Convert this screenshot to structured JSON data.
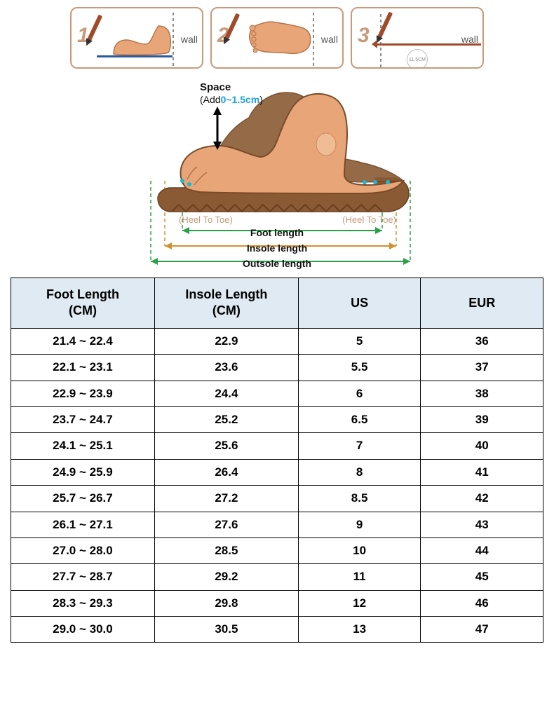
{
  "steps": {
    "s1": {
      "num": "1",
      "wall": "wall"
    },
    "s2": {
      "num": "2",
      "wall": "wall"
    },
    "s3": {
      "num": "3",
      "wall": "wall",
      "circle": "11.5CM"
    }
  },
  "diagram": {
    "space_label": "Space",
    "space_add_prefix": "(Add",
    "space_val": "0~1.5cm",
    "space_add_suffix": ")",
    "heel_to_toe": "(Heel To Toe)",
    "foot_length": "Foot length",
    "insole_length": "Insole length",
    "outsole_length": "Outsole length",
    "colors": {
      "skin_main": "#e8a678",
      "skin_dark": "#b4744a",
      "outline": "#7a4a2a",
      "shoe": "#8a5a34",
      "foot_green": "#2aa048",
      "insole_orange": "#d69030",
      "outsole_green": "#2aa048",
      "accent_blue": "#1aa3d6",
      "teal_dot": "#1abacb"
    }
  },
  "table": {
    "header_bg": "#dfeaf2",
    "border_color": "#000000",
    "columns": [
      "Foot Length (CM)",
      "Insole Length (CM)",
      "US",
      "EUR"
    ],
    "rows": [
      [
        "21.4 ~ 22.4",
        "22.9",
        "5",
        "36"
      ],
      [
        "22.1 ~ 23.1",
        "23.6",
        "5.5",
        "37"
      ],
      [
        "22.9 ~ 23.9",
        "24.4",
        "6",
        "38"
      ],
      [
        "23.7 ~ 24.7",
        "25.2",
        "6.5",
        "39"
      ],
      [
        "24.1 ~ 25.1",
        "25.6",
        "7",
        "40"
      ],
      [
        "24.9 ~ 25.9",
        "26.4",
        "8",
        "41"
      ],
      [
        "25.7 ~ 26.7",
        "27.2",
        "8.5",
        "42"
      ],
      [
        "26.1 ~ 27.1",
        "27.6",
        "9",
        "43"
      ],
      [
        "27.0 ~ 28.0",
        "28.5",
        "10",
        "44"
      ],
      [
        "27.7 ~ 28.7",
        "29.2",
        "11",
        "45"
      ],
      [
        "28.3 ~ 29.3",
        "29.8",
        "12",
        "46"
      ],
      [
        "29.0 ~ 30.0",
        "30.5",
        "13",
        "47"
      ]
    ]
  }
}
